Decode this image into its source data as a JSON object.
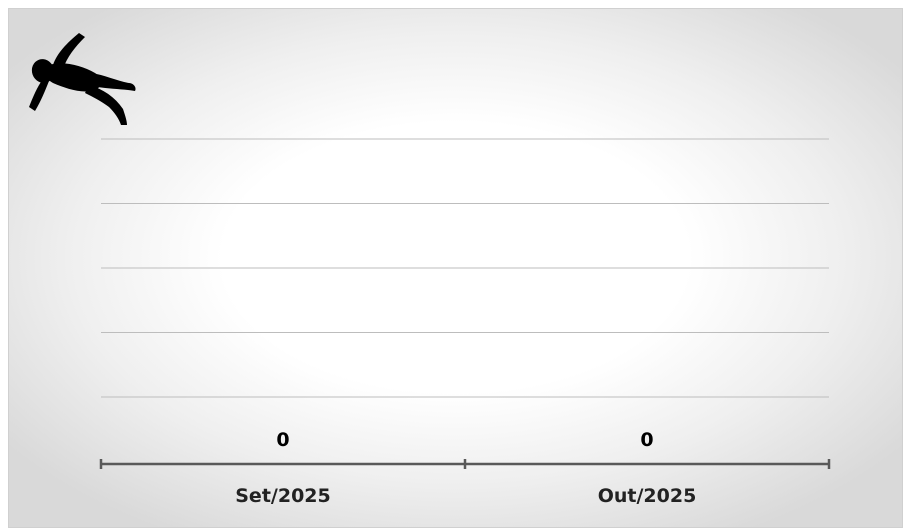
{
  "chart_data": {
    "type": "bar",
    "categories": [
      "Set/2025",
      "Out/2025"
    ],
    "values": [
      0,
      0
    ],
    "data_labels": [
      "0",
      "0"
    ],
    "title": "",
    "xlabel": "",
    "ylabel": "",
    "gridlines": 5,
    "grid": true,
    "legend": "none",
    "colors": {
      "grid": "#bdbdbd",
      "axis": "#595959",
      "label": "#000000"
    }
  },
  "icon": "fallen-person-icon"
}
